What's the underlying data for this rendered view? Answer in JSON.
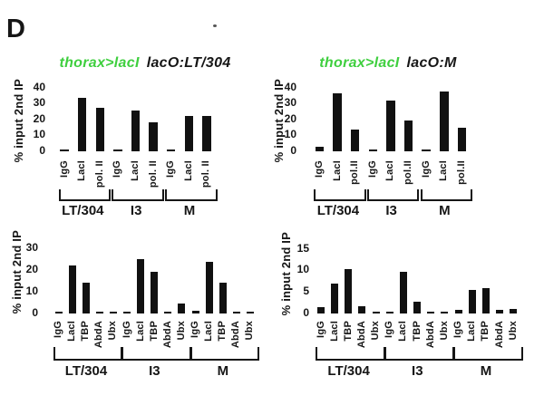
{
  "panel_label": "D",
  "colors": {
    "green": "#3fcf3f",
    "bar": "#111111",
    "text": "#161616"
  },
  "chart_data": [
    {
      "type": "bar",
      "position": "top-left",
      "title_green": "thorax>lacI",
      "title_black": "lacO:LT/304",
      "ylabel": "% input 2nd IP",
      "ylim": [
        0,
        40
      ],
      "yticks": [
        40,
        30,
        20,
        10,
        0
      ],
      "group_labels": [
        "LT/304",
        "I3",
        "M"
      ],
      "bar_labels": [
        "IgG",
        "LacI",
        "pol. II"
      ],
      "values": [
        [
          0.8,
          33.5,
          27.5
        ],
        [
          0.8,
          26,
          18.5
        ],
        [
          0.8,
          22.5,
          22.5
        ]
      ]
    },
    {
      "type": "bar",
      "position": "top-right",
      "title_green": "thorax>lacI",
      "title_black": "lacO:M",
      "ylabel": "% input 2nd IP",
      "ylim": [
        0,
        40
      ],
      "yticks": [
        40,
        30,
        20,
        10,
        0
      ],
      "group_labels": [
        "LT/304",
        "I3",
        "M"
      ],
      "bar_labels": [
        "IgG",
        "LacI",
        "pol.II"
      ],
      "values": [
        [
          3,
          36.5,
          14
        ],
        [
          1,
          32,
          19.5
        ],
        [
          1,
          37.5,
          15
        ]
      ]
    },
    {
      "type": "bar",
      "position": "bottom-left",
      "title_green": "",
      "title_black": "",
      "ylabel": "% input 2nd IP",
      "ylim": [
        0,
        30
      ],
      "yticks": [
        30,
        20,
        10,
        0
      ],
      "group_labels": [
        "LT/304",
        "I3",
        "M"
      ],
      "bar_labels": [
        "IgG",
        "LacI",
        "TBP",
        "AbdA",
        "Ubx"
      ],
      "values": [
        [
          0.6,
          22.5,
          14.5,
          0.6,
          0.6
        ],
        [
          0.6,
          25.5,
          19.5,
          0.6,
          4.5
        ],
        [
          1.2,
          24,
          14.5,
          0.6,
          1
        ]
      ]
    },
    {
      "type": "bar",
      "position": "bottom-right",
      "title_green": "",
      "title_black": "",
      "ylabel": "% input 2nd IP",
      "ylim": [
        0,
        15
      ],
      "yticks": [
        15,
        10,
        5,
        0
      ],
      "group_labels": [
        "LT/304",
        "I3",
        "M"
      ],
      "bar_labels": [
        "IgG",
        "LacI",
        "TBP",
        "AbdA",
        "Ubx"
      ],
      "values": [
        [
          1.5,
          7,
          10.4,
          1.8,
          0.4
        ],
        [
          0.4,
          9.7,
          2.7,
          0.4,
          0.4
        ],
        [
          0.8,
          5.6,
          5.9,
          0.9,
          1.1
        ]
      ]
    }
  ]
}
